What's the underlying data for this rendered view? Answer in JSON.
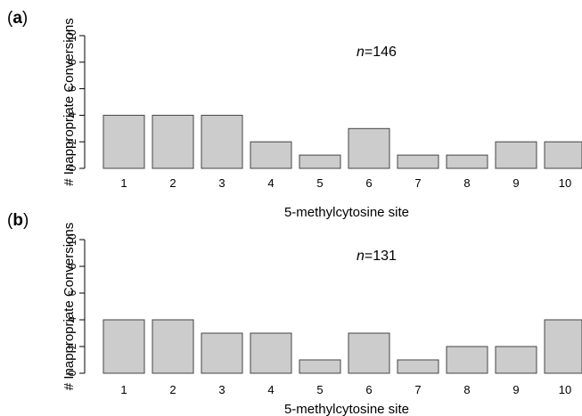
{
  "style": {
    "bar_fill": "#cccccc",
    "bar_stroke": "#444444",
    "axis_color": "#000000"
  },
  "chart_data": [
    {
      "type": "bar",
      "panel_label": "a",
      "annotation": {
        "italic": "n",
        "text": "=146"
      },
      "title": "",
      "xlabel": "5-methylcytosine site",
      "ylabel": "# Inappropriate Conversions",
      "ylim": [
        0,
        10
      ],
      "yticks": [
        "0",
        "2",
        "4",
        "6",
        "8",
        "10"
      ],
      "categories": [
        "1",
        "2",
        "3",
        "4",
        "5",
        "6",
        "7",
        "8",
        "9",
        "10"
      ],
      "values": [
        4,
        4,
        4,
        2,
        1,
        3,
        1,
        1,
        2,
        2
      ],
      "grid": false
    },
    {
      "type": "bar",
      "panel_label": "b",
      "annotation": {
        "italic": "n",
        "text": "=131"
      },
      "title": "",
      "xlabel": "5-methylcytosine site",
      "ylabel": "# Inappropriate Conversions",
      "ylim": [
        0,
        10
      ],
      "yticks": [
        "0",
        "2",
        "4",
        "6",
        "8",
        "10"
      ],
      "categories": [
        "1",
        "2",
        "3",
        "4",
        "5",
        "6",
        "7",
        "8",
        "9",
        "10"
      ],
      "values": [
        4,
        4,
        3,
        3,
        1,
        3,
        1,
        2,
        2,
        4
      ],
      "grid": false
    }
  ]
}
